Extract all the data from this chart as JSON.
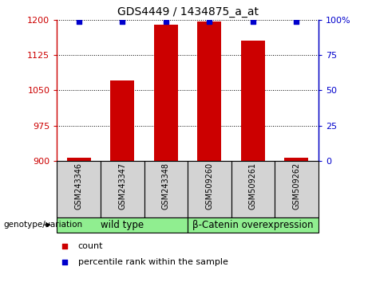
{
  "title": "GDS4449 / 1434875_a_at",
  "samples": [
    "GSM243346",
    "GSM243347",
    "GSM243348",
    "GSM509260",
    "GSM509261",
    "GSM509262"
  ],
  "count_values": [
    907,
    1070,
    1190,
    1196,
    1155,
    907
  ],
  "percentile_values": [
    98.5,
    98.5,
    99,
    99,
    98.5,
    98.5
  ],
  "ylim_left": [
    900,
    1200
  ],
  "ylim_right": [
    0,
    100
  ],
  "yticks_left": [
    900,
    975,
    1050,
    1125,
    1200
  ],
  "yticks_right": [
    0,
    25,
    50,
    75,
    100
  ],
  "bar_color": "#cc0000",
  "dot_color": "#0000cc",
  "bar_width": 0.55,
  "group1_label": "wild type",
  "group2_label": "β-Catenin overexpression",
  "group1_indices": [
    0,
    1,
    2
  ],
  "group2_indices": [
    3,
    4,
    5
  ],
  "group_bg_color": "#90ee90",
  "sample_bg_color": "#d3d3d3",
  "legend_count_label": "count",
  "legend_percentile_label": "percentile rank within the sample",
  "genotype_label": "genotype/variation"
}
